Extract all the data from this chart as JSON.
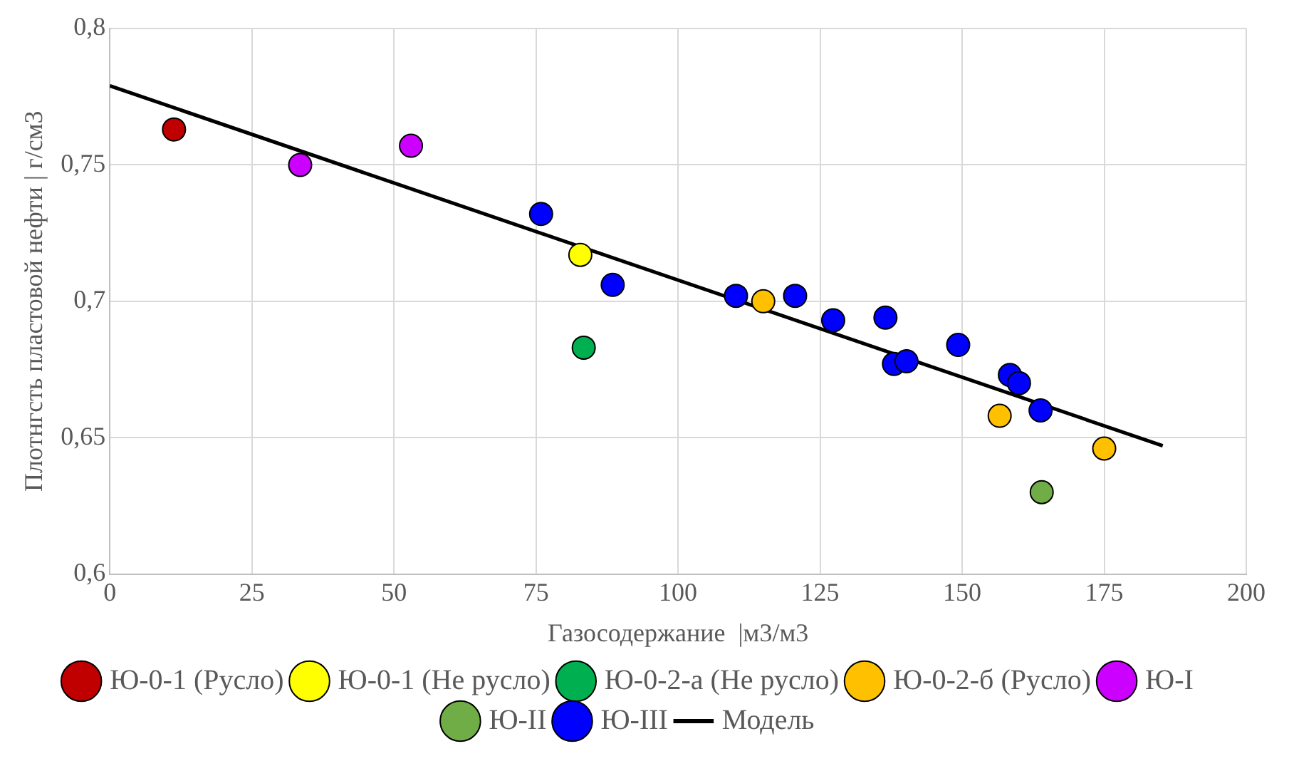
{
  "chart_data": {
    "type": "scatter",
    "xlabel": "Газосодержание  |м3/м3",
    "ylabel": "Плотнгсть пластовой нефти | г/см3",
    "xlim": [
      0,
      200
    ],
    "xticks": [
      0,
      25,
      50,
      75,
      100,
      125,
      150,
      175,
      200
    ],
    "ylim": [
      0.6,
      0.8
    ],
    "yticks": [
      {
        "value": 0.6,
        "label": "0,6"
      },
      {
        "value": 0.65,
        "label": "0,65"
      },
      {
        "value": 0.7,
        "label": "0,7"
      },
      {
        "value": 0.75,
        "label": "0,75"
      },
      {
        "value": 0.8,
        "label": "0,8"
      }
    ],
    "grid": true,
    "legend": "bottom",
    "marker": "circle",
    "series": [
      {
        "name": "Ю-0-1 (Русло)",
        "color": "#c00000",
        "x": [
          11.3
        ],
        "values": [
          0.763
        ]
      },
      {
        "name": "Ю-0-1 (Не русло)",
        "color": "#ffff00",
        "x": [
          82.8
        ],
        "values": [
          0.717
        ]
      },
      {
        "name": "Ю-0-2-а (Не русло)",
        "color": "#00b050",
        "x": [
          83.4
        ],
        "values": [
          0.683
        ]
      },
      {
        "name": "Ю-0-2-б (Русло)",
        "color": "#ffc000",
        "x": [
          115,
          156.6,
          175
        ],
        "values": [
          0.7,
          0.658,
          0.646
        ]
      },
      {
        "name": "Ю-I",
        "color": "#cc00ff",
        "x": [
          33.5,
          53
        ],
        "values": [
          0.75,
          0.757
        ]
      },
      {
        "name": "Ю-II",
        "color": "#70ad47",
        "x": [
          164
        ],
        "values": [
          0.63
        ]
      },
      {
        "name": "Ю-III",
        "color": "#0000ff",
        "x": [
          75.9,
          88.5,
          110.2,
          120.6,
          127.3,
          136.5,
          138,
          140.2,
          149.3,
          158.4,
          160,
          163.8
        ],
        "values": [
          0.732,
          0.706,
          0.702,
          0.702,
          0.693,
          0.694,
          0.677,
          0.678,
          0.684,
          0.673,
          0.67,
          0.66
        ]
      },
      {
        "name": "Модель",
        "type": "line",
        "color": "#000000",
        "marker": "none",
        "x": [
          0,
          185.3
        ],
        "values": [
          0.779,
          0.647
        ]
      }
    ]
  }
}
